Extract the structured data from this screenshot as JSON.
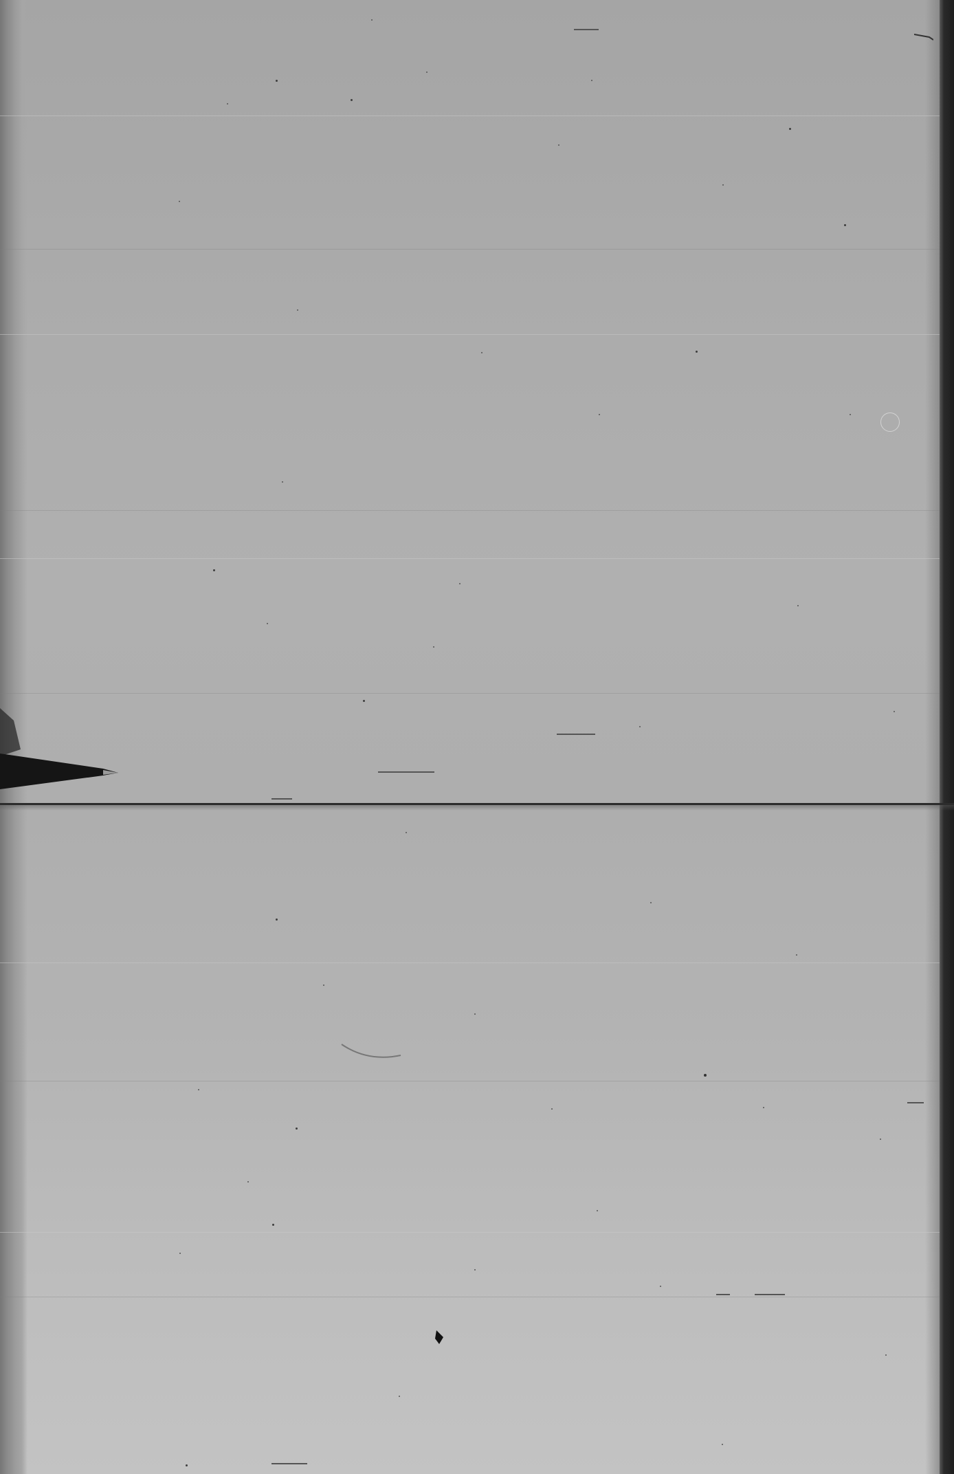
{
  "page": {
    "colors": {
      "paper": "#aeaeae",
      "left_edge": "#7a7a7a",
      "right_edge": "#1e1e1e",
      "fold_line": "#2c2c2c",
      "specks": "#3d3d3d"
    }
  }
}
